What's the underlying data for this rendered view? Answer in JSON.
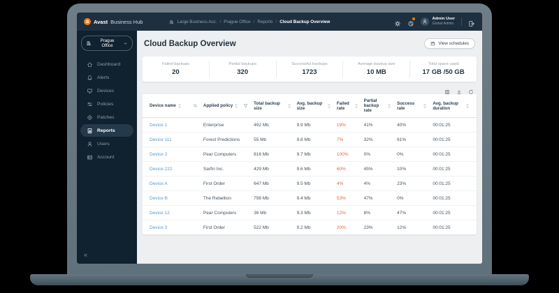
{
  "brand": {
    "bold": "Avast",
    "rest": "Business Hub"
  },
  "breadcrumb": {
    "icon": "building-icon",
    "items": [
      "Large Business Acc.",
      "Prague Office",
      "Reports"
    ],
    "current": "Cloud Backup Overview"
  },
  "topbar": {
    "user_name": "Admin User",
    "user_role": "Global Admin",
    "icons": [
      "settings-gear-icon",
      "usage-pie-icon",
      "avatar-icon",
      "logout-icon"
    ]
  },
  "sidebar": {
    "org_selector": {
      "label": "Prague Office",
      "icon": "building-icon"
    },
    "items": [
      {
        "label": "Dashboard",
        "icon": "home-icon",
        "active": false
      },
      {
        "label": "Alerts",
        "icon": "bell-icon",
        "active": false
      },
      {
        "label": "Devices",
        "icon": "monitor-icon",
        "active": false
      },
      {
        "label": "Policies",
        "icon": "sliders-icon",
        "active": false
      },
      {
        "label": "Patches",
        "icon": "patch-icon",
        "active": false
      },
      {
        "label": "Reports",
        "icon": "report-icon",
        "active": true
      },
      {
        "label": "Users",
        "icon": "user-icon",
        "active": false
      },
      {
        "label": "Account",
        "icon": "account-icon",
        "active": false
      }
    ],
    "collapse_glyph": "«"
  },
  "page": {
    "title": "Cloud Backup Overview",
    "actions": {
      "view_schedules": "View schedules",
      "view_schedules_icon": "calendar-icon"
    }
  },
  "stats": [
    {
      "label": "Failed backups",
      "value": "20"
    },
    {
      "label": "Partial backups",
      "value": "320"
    },
    {
      "label": "Successful backups",
      "value": "1723"
    },
    {
      "label": "Average backup size",
      "value": "10 MB"
    },
    {
      "label": "Total space used",
      "value": "17 GB /50 GB"
    }
  ],
  "table": {
    "toolbar_icons": [
      "columns-icon",
      "download-icon",
      "refresh-icon"
    ],
    "columns": [
      {
        "label": "Device name",
        "sortable": true,
        "extra_icon": "search-icon"
      },
      {
        "label": "Applied policy",
        "sortable": true,
        "extra_icon": "filter-icon"
      },
      {
        "label": "Total backup size",
        "sortable": true
      },
      {
        "label": "Avg. backup size",
        "sortable": true
      },
      {
        "label": "Failed rate",
        "sortable": true
      },
      {
        "label": "Partial backup rate",
        "sortable": true
      },
      {
        "label": "Success rate",
        "sortable": true
      },
      {
        "label": "Avg. backup duration",
        "sortable": true
      }
    ],
    "rows": [
      {
        "device": "Device 1",
        "policy": "Enterprise",
        "total": "492 Mb",
        "avg": "9.9 Mb",
        "failed": "19%",
        "partial": "41%",
        "success": "40%",
        "duration": "00:01:25"
      },
      {
        "device": "Device 111",
        "policy": "Forest Predictions",
        "total": "55 Mb",
        "avg": "9.8 Mb",
        "failed": "7%",
        "partial": "32%",
        "success": "61%",
        "duration": "00:01:25"
      },
      {
        "device": "Device 2",
        "policy": "Pear Computers",
        "total": "816 Mb",
        "avg": "9.7 Mb",
        "failed": "100%",
        "partial": "0%",
        "success": "0%",
        "duration": "00:01:25"
      },
      {
        "device": "Device 222",
        "policy": "Sarfin Inc.",
        "total": "429 Mb",
        "avg": "9.6 Mb",
        "failed": "60%",
        "partial": "45%",
        "success": "10%",
        "duration": "00:01:25"
      },
      {
        "device": "Device A",
        "policy": "First Order",
        "total": "647 Mb",
        "avg": "9.5 Mb",
        "failed": "4%",
        "partial": "4%",
        "success": "23%",
        "duration": "00:01:25"
      },
      {
        "device": "Device B",
        "policy": "The Rebellion",
        "total": "798 Mb",
        "avg": "9.4 Mb",
        "failed": "53%",
        "partial": "47%",
        "success": "0%",
        "duration": "00:01:25"
      },
      {
        "device": "Device 12",
        "policy": "Pear Computers",
        "total": "36 Mb",
        "avg": "9.3 Mb",
        "failed": "12%",
        "partial": "8%",
        "success": "47%",
        "duration": "00:01:25"
      },
      {
        "device": "Device 3",
        "policy": "First Order",
        "total": "522 Mb",
        "avg": "9.2 Mb",
        "failed": "20%",
        "partial": "23%",
        "success": "12%",
        "duration": "00:01:25"
      }
    ]
  },
  "colors": {
    "brand_orange": "#ff7800",
    "header_navy": "#1e3040",
    "sidebar_navy": "#10222f",
    "link_blue": "#559bd4",
    "failed_red": "#e8613f",
    "content_bg": "#edeff0"
  }
}
